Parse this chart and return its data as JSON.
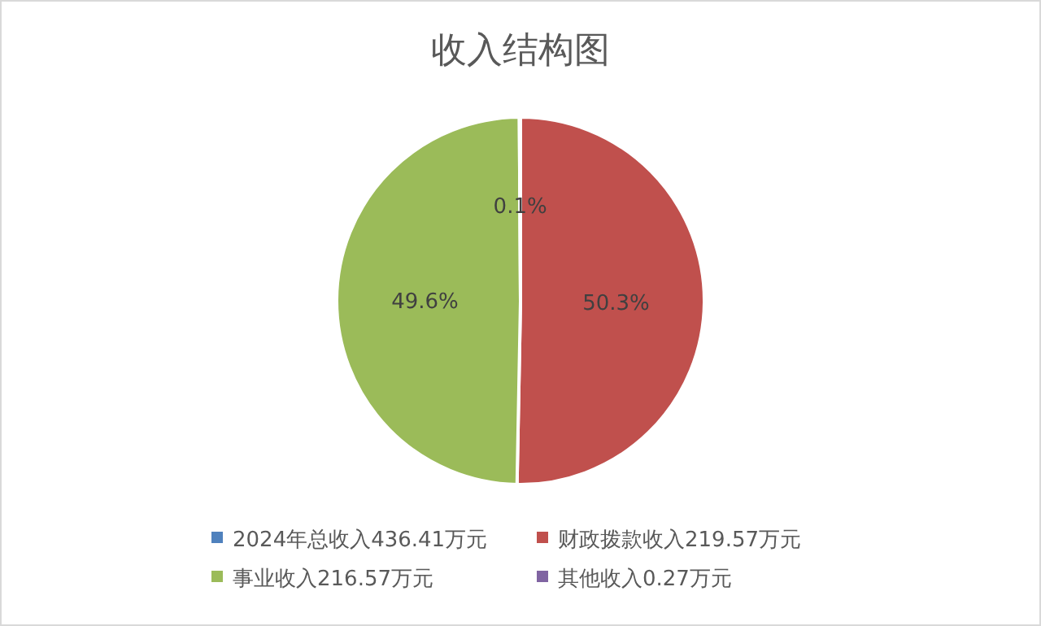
{
  "chart_data": {
    "type": "pie",
    "title": "收入结构图",
    "categories": [
      "2024年总收入436.41万元",
      "财政拨款收入219.57万元",
      "事业收入216.57万元",
      "其他收入0.27万元"
    ],
    "values": [
      0,
      50.3,
      49.6,
      0.1
    ],
    "colors": [
      "#4f81bd",
      "#c0504d",
      "#9bbb59",
      "#8064a2"
    ],
    "value_labels": [
      null,
      "50.3%",
      "49.6%",
      "0.1%"
    ],
    "legend": "bottom"
  }
}
